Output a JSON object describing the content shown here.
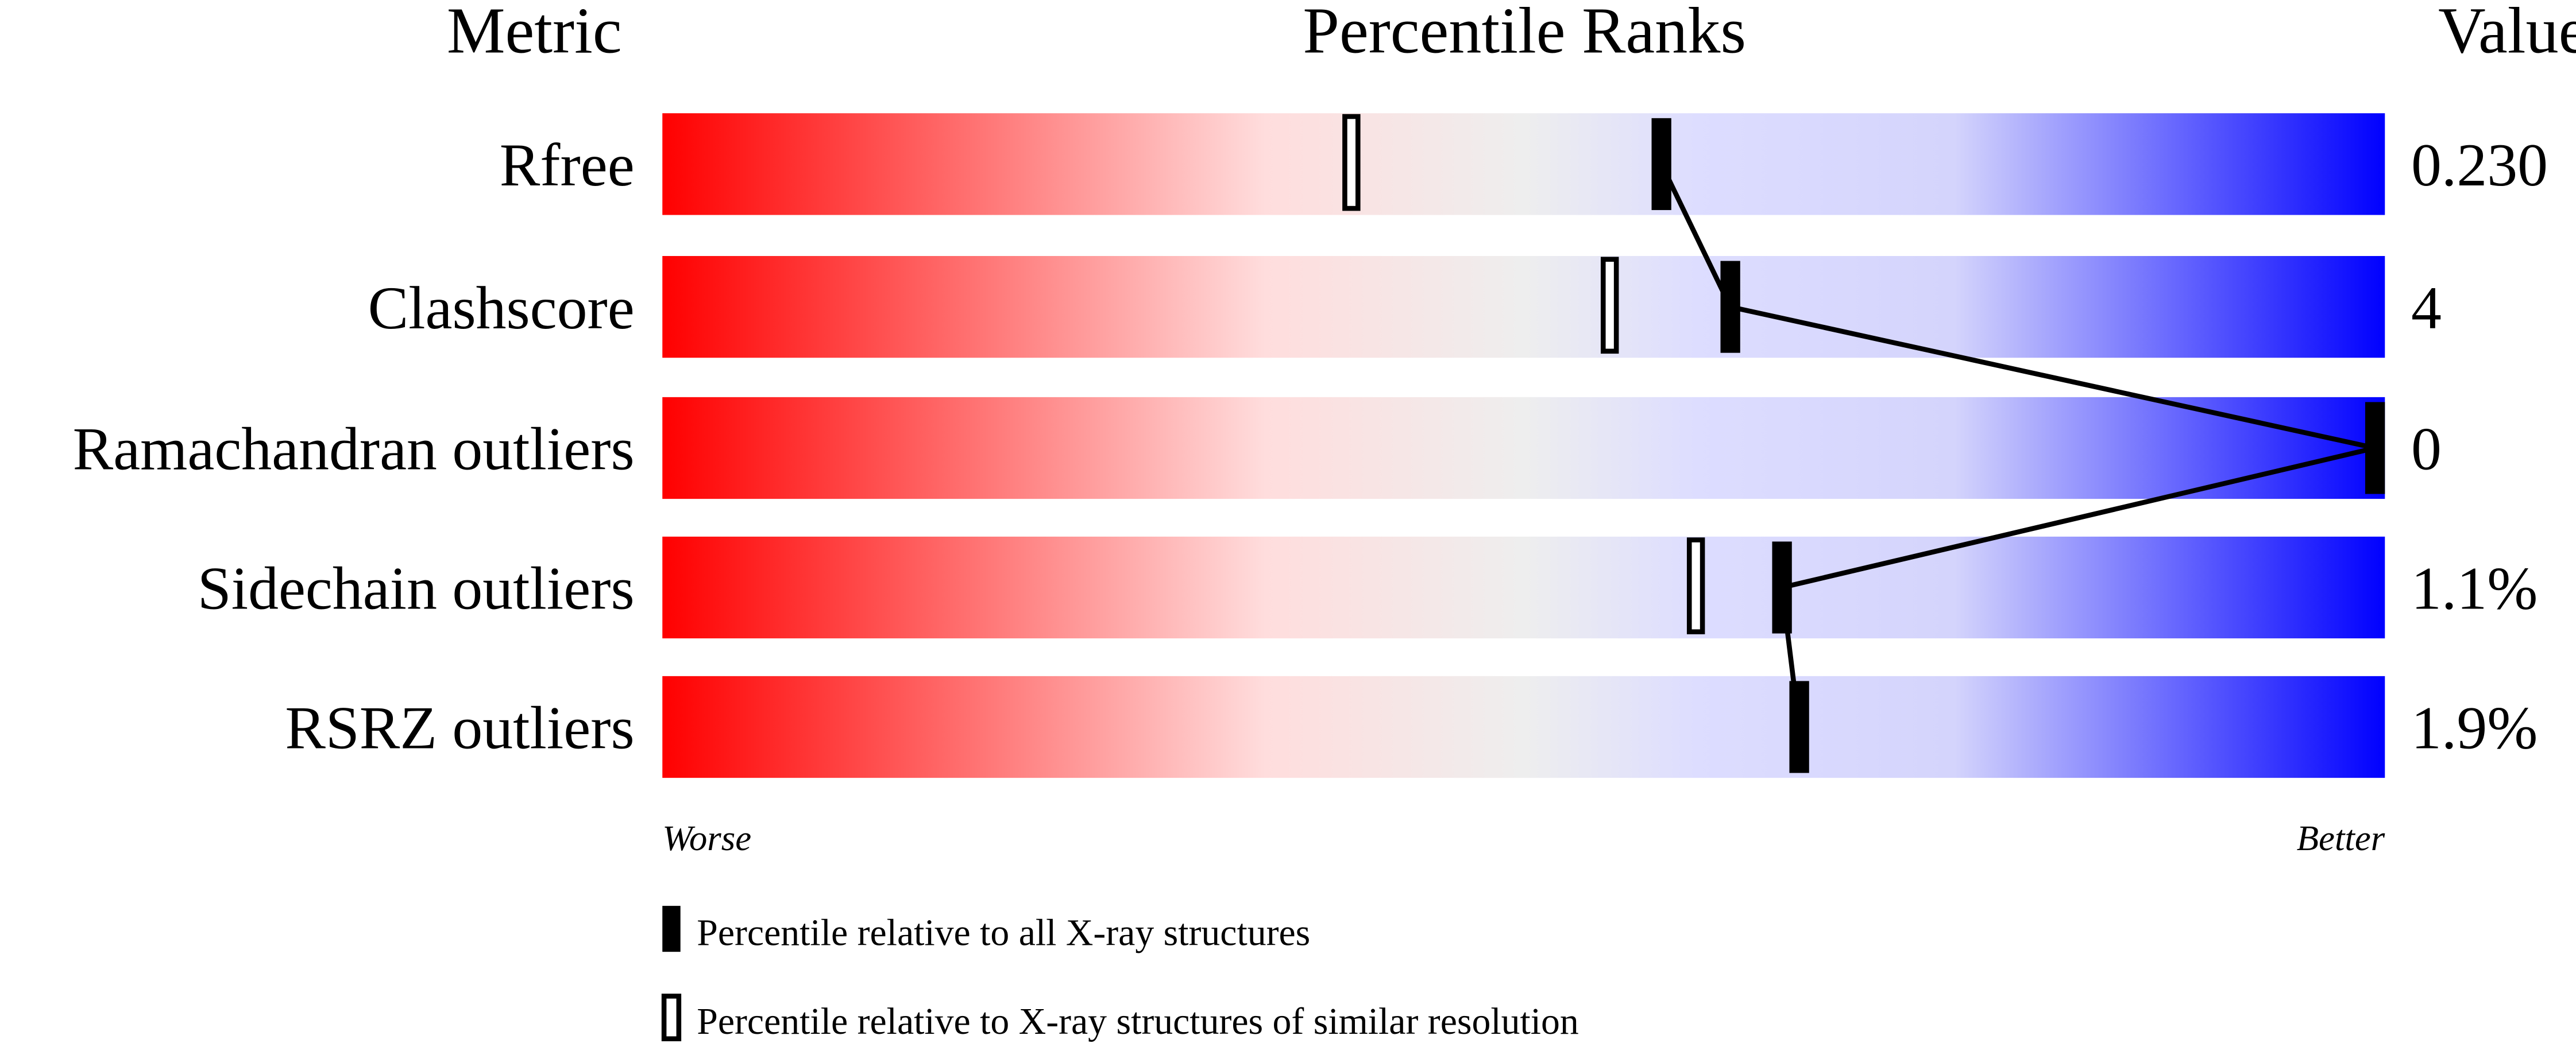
{
  "chart_data": {
    "type": "percentile-slider",
    "headers": {
      "metric": "Metric",
      "ranks": "Percentile Ranks",
      "value": "Value"
    },
    "axis": {
      "min": 0,
      "max": 100,
      "left_label": "Worse",
      "right_label": "Better"
    },
    "gradient_colors": [
      "#ff0000",
      "#ffdddd",
      "#eeeeee",
      "#ddddff",
      "#0000ff"
    ],
    "rows": [
      {
        "metric": "Rfree",
        "value": "0.230",
        "percentile_all": 58,
        "percentile_similar": 40
      },
      {
        "metric": "Clashscore",
        "value": "4",
        "percentile_all": 62,
        "percentile_similar": 55
      },
      {
        "metric": "Ramachandran outliers",
        "value": "0",
        "percentile_all": 100,
        "percentile_similar": 100
      },
      {
        "metric": "Sidechain outliers",
        "value": "1.1%",
        "percentile_all": 65,
        "percentile_similar": 60
      },
      {
        "metric": "RSRZ outliers",
        "value": "1.9%",
        "percentile_all": 66,
        "percentile_similar": 66
      }
    ],
    "legend": [
      {
        "marker": "filled",
        "label": "Percentile relative to all X-ray structures"
      },
      {
        "marker": "open",
        "label": "Percentile relative to X-ray structures of similar resolution"
      }
    ]
  }
}
